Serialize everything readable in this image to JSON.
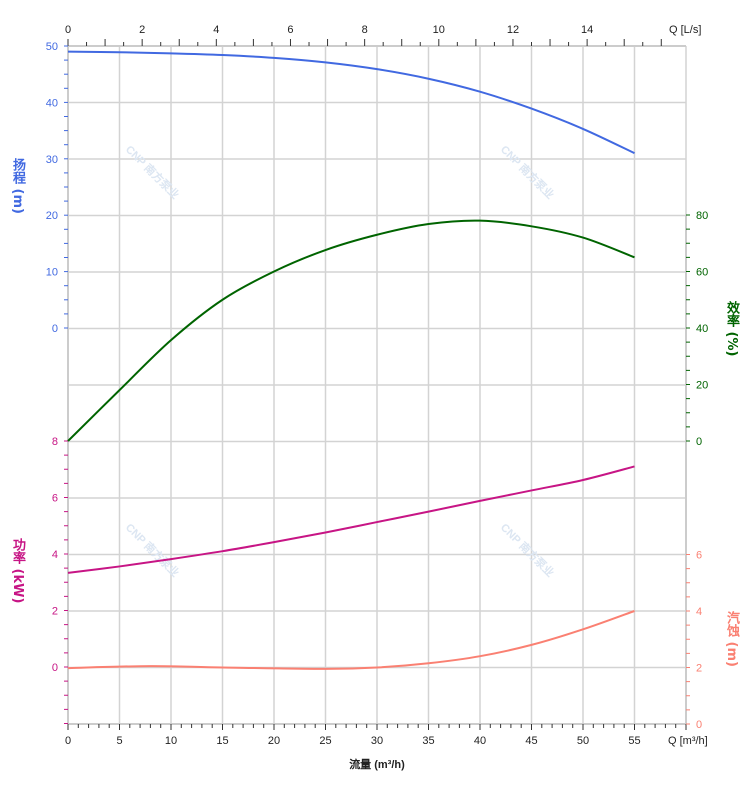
{
  "chart_data": {
    "type": "line",
    "x_bottom": {
      "label": "流量 (m³/h)",
      "unit_label": "Q [m³/h]",
      "range": [
        0,
        60
      ],
      "ticks": [
        0,
        5,
        10,
        15,
        20,
        25,
        30,
        35,
        40,
        45,
        50,
        55
      ]
    },
    "x_top": {
      "unit_label": "Q [L/s]",
      "ticks": [
        0,
        2,
        4,
        6,
        8,
        10,
        12,
        14
      ]
    },
    "grid": true,
    "watermark": "CNP 南方泵业",
    "axes": {
      "head": {
        "label": "扬程 (m)",
        "ticks": [
          0,
          10,
          20,
          30,
          40,
          50
        ],
        "range": [
          0,
          50
        ],
        "color": "#4169e1"
      },
      "efficiency": {
        "label": "效率 (%)",
        "ticks": [
          0,
          20,
          40,
          60,
          80
        ],
        "range": [
          0,
          80
        ],
        "color": "#006400"
      },
      "power": {
        "label": "功率 (kW)",
        "ticks": [
          0,
          2,
          4,
          6,
          8
        ],
        "range": [
          -2,
          8
        ],
        "color": "#c71585"
      },
      "npsh": {
        "label": "汽蚀 (m)",
        "ticks": [
          0,
          2,
          4,
          6
        ],
        "range": [
          0,
          6
        ],
        "color": "#fa8072"
      }
    },
    "series": [
      {
        "axis": "head",
        "x": [
          0,
          5,
          10,
          15,
          20,
          25,
          30,
          35,
          40,
          45,
          50,
          55
        ],
        "y": [
          49,
          48.9,
          48.7,
          48.4,
          47.9,
          47.1,
          45.9,
          44.2,
          41.9,
          38.9,
          35.3,
          31
        ]
      },
      {
        "axis": "efficiency",
        "x": [
          0,
          5,
          10,
          15,
          20,
          25,
          30,
          35,
          40,
          45,
          50,
          55
        ],
        "y": [
          0,
          18,
          35.7,
          50,
          60,
          67.6,
          73,
          76.8,
          78,
          76,
          72,
          65
        ]
      },
      {
        "axis": "power",
        "x": [
          0,
          5,
          10,
          15,
          20,
          25,
          30,
          35,
          40,
          45,
          50,
          55
        ],
        "y": [
          3.33,
          3.56,
          3.82,
          4.1,
          4.42,
          4.76,
          5.13,
          5.5,
          5.88,
          6.25,
          6.62,
          7.1
        ]
      },
      {
        "axis": "npsh",
        "x": [
          0,
          8,
          15,
          25,
          30,
          35,
          40,
          45,
          50,
          55
        ],
        "y": [
          1.98,
          2.05,
          2.0,
          1.95,
          2.0,
          2.15,
          2.4,
          2.8,
          3.35,
          4.0
        ]
      }
    ]
  }
}
